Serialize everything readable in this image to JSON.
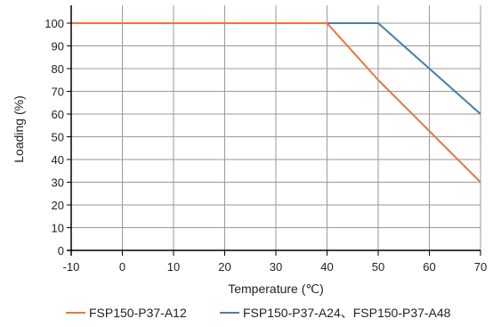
{
  "chart_data": {
    "type": "line",
    "title": "",
    "xlabel": "Temperature (℃)",
    "ylabel": "Loading (%)",
    "xlim": [
      -10,
      70
    ],
    "ylim": [
      0,
      100
    ],
    "xticks": [
      -10,
      0,
      10,
      20,
      30,
      40,
      50,
      60,
      70
    ],
    "yticks": [
      0,
      10,
      20,
      30,
      40,
      50,
      60,
      70,
      80,
      90,
      100
    ],
    "grid": true,
    "legend_position": "bottom",
    "series": [
      {
        "name": "FSP150-P37-A12",
        "color": "#E8773A",
        "x": [
          -10,
          40,
          50,
          70
        ],
        "y": [
          100,
          100,
          75,
          30
        ]
      },
      {
        "name": "FSP150-P37-A24、FSP150-P37-A48",
        "color": "#4A7FA5",
        "x": [
          -10,
          50,
          70
        ],
        "y": [
          100,
          100,
          60
        ]
      }
    ]
  }
}
